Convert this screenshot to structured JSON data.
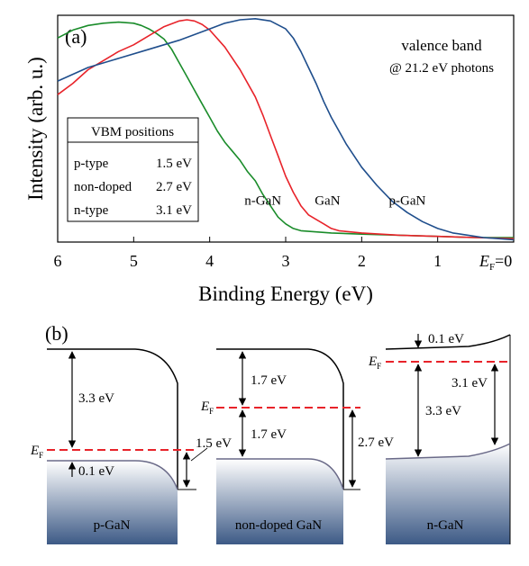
{
  "chart_data": {
    "type": "line",
    "panel_label": "(a)",
    "xlabel": "Binding Energy (eV)",
    "ylabel": "Intensity (arb. u.)",
    "xlim": [
      6,
      0
    ],
    "x_reversed": true,
    "x_ticks": [
      6,
      5,
      4,
      3,
      2,
      1
    ],
    "x_tick_labels": [
      "6",
      "5",
      "4",
      "3",
      "2",
      "1"
    ],
    "x_end_label": {
      "sym": "E",
      "sub": "F",
      "suffix": "=0"
    },
    "ylim": [
      0,
      1
    ],
    "grid": false,
    "annotation": {
      "line1": "valence band",
      "line2": "@ 21.2 eV photons"
    },
    "vbm_table": {
      "header": "VBM positions",
      "rows": [
        {
          "type": "p-type",
          "value": "1.5 eV"
        },
        {
          "type": "non-doped",
          "value": "2.7 eV"
        },
        {
          "type": "n-type",
          "value": "3.1 eV"
        }
      ]
    },
    "series": [
      {
        "name": "n-GaN",
        "color": "#1a8c2a",
        "x": [
          6.0,
          5.8,
          5.6,
          5.4,
          5.2,
          5.0,
          4.9,
          4.8,
          4.7,
          4.6,
          4.5,
          4.4,
          4.3,
          4.2,
          4.1,
          4.0,
          3.9,
          3.8,
          3.7,
          3.6,
          3.5,
          3.4,
          3.3,
          3.2,
          3.1,
          3.0,
          2.9,
          2.8,
          2.6,
          2.4,
          2.0,
          1.5,
          1.0,
          0.5,
          0.0
        ],
        "y": [
          0.9,
          0.935,
          0.955,
          0.965,
          0.97,
          0.965,
          0.955,
          0.94,
          0.92,
          0.895,
          0.85,
          0.79,
          0.73,
          0.67,
          0.61,
          0.55,
          0.49,
          0.44,
          0.4,
          0.36,
          0.31,
          0.27,
          0.21,
          0.16,
          0.11,
          0.08,
          0.06,
          0.05,
          0.045,
          0.04,
          0.035,
          0.03,
          0.025,
          0.02,
          0.02
        ]
      },
      {
        "name": "GaN",
        "color": "#e8232a",
        "x": [
          6.0,
          5.8,
          5.6,
          5.4,
          5.2,
          5.0,
          4.8,
          4.6,
          4.4,
          4.3,
          4.2,
          4.1,
          4.0,
          3.8,
          3.6,
          3.4,
          3.3,
          3.2,
          3.1,
          3.0,
          2.9,
          2.8,
          2.7,
          2.6,
          2.5,
          2.4,
          2.3,
          2.0,
          1.5,
          1.0,
          0.5,
          0.0
        ],
        "y": [
          0.65,
          0.7,
          0.76,
          0.8,
          0.84,
          0.87,
          0.91,
          0.95,
          0.975,
          0.98,
          0.975,
          0.96,
          0.935,
          0.86,
          0.76,
          0.64,
          0.56,
          0.47,
          0.38,
          0.29,
          0.22,
          0.16,
          0.12,
          0.1,
          0.08,
          0.06,
          0.05,
          0.04,
          0.03,
          0.025,
          0.02,
          0.015
        ]
      },
      {
        "name": "p-GaN",
        "color": "#1f4e8c",
        "x": [
          6.0,
          5.6,
          5.2,
          4.8,
          4.4,
          4.0,
          3.8,
          3.6,
          3.4,
          3.2,
          3.0,
          2.9,
          2.8,
          2.7,
          2.6,
          2.5,
          2.4,
          2.2,
          2.0,
          1.8,
          1.6,
          1.4,
          1.2,
          1.0,
          0.8,
          0.6,
          0.4,
          0.2,
          0.0
        ],
        "y": [
          0.71,
          0.77,
          0.81,
          0.85,
          0.89,
          0.94,
          0.965,
          0.98,
          0.985,
          0.975,
          0.94,
          0.9,
          0.84,
          0.77,
          0.7,
          0.62,
          0.55,
          0.43,
          0.33,
          0.25,
          0.18,
          0.13,
          0.09,
          0.06,
          0.04,
          0.03,
          0.02,
          0.015,
          0.01
        ]
      }
    ],
    "curve_labels": [
      {
        "name": "n-GaN",
        "x": 3.3,
        "y": 0.165
      },
      {
        "name": "GaN",
        "x": 2.45,
        "y": 0.165
      },
      {
        "name": "p-GaN",
        "x": 1.4,
        "y": 0.165
      }
    ]
  },
  "diagram": {
    "panel_label": "(b)",
    "fermi_symbol": "E",
    "fermi_sub": "F",
    "panels": [
      {
        "name": "p-GaN",
        "gap_label": "3.3 eV",
        "bottom_label": "0.1 eV",
        "bend_label": "1.5 eV"
      },
      {
        "name": "non-doped GaN",
        "upper_label": "1.7 eV",
        "lower_label": "1.7 eV",
        "bend_label": "2.7 eV"
      },
      {
        "name": "n-GaN",
        "top_label": "0.1 eV",
        "gap_label": "3.3 eV",
        "bend_label": "3.1 eV"
      }
    ]
  }
}
